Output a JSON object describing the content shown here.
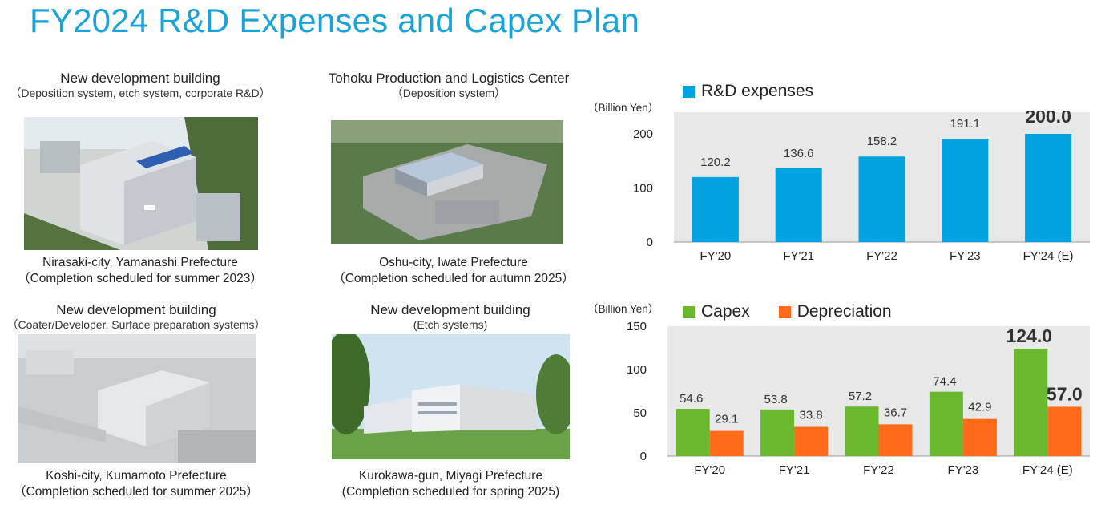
{
  "title": "FY2024 R&D Expenses and Capex Plan",
  "facilities": [
    {
      "heading": "New development building",
      "subheading": "（Deposition system, etch system, corporate R&D）",
      "location": "Nirasaki-city, Yamanashi Prefecture",
      "schedule": "（Completion scheduled for summer 2023）"
    },
    {
      "heading": "Tohoku Production and Logistics Center",
      "subheading": "（Deposition system）",
      "location": "Oshu-city, Iwate Prefecture",
      "schedule": "（Completion scheduled for autumn 2025）"
    },
    {
      "heading": "New development building",
      "subheading": "（Coater/Developer, Surface preparation systems）",
      "location": "Koshi-city, Kumamoto Prefecture",
      "schedule": "（Completion scheduled for summer 2025）"
    },
    {
      "heading": "New development building",
      "subheading": "(Etch systems)",
      "location": "Kurokawa-gun, Miyagi Prefecture",
      "schedule": "(Completion scheduled for spring 2025)"
    }
  ],
  "chart_data": [
    {
      "type": "bar",
      "unit_label": "（Billion Yen）",
      "categories": [
        "FY'20",
        "FY'21",
        "FY'22",
        "FY'23",
        "FY'24 (E)"
      ],
      "series": [
        {
          "name": "R&D expenses",
          "color": "#00a3e0",
          "values": [
            120.2,
            136.6,
            158.2,
            191.1,
            200.0
          ],
          "labels": [
            "120.2",
            "136.6",
            "158.2",
            "191.1",
            "200.0"
          ]
        }
      ],
      "ylim": [
        0,
        240
      ],
      "yticks": [
        "0",
        "100",
        "200"
      ],
      "ytick_values": [
        0,
        100,
        200
      ],
      "grid": false,
      "highlight_last": true,
      "legend_position": "top-left"
    },
    {
      "type": "bar",
      "unit_label": "（Billion Yen）",
      "categories": [
        "FY'20",
        "FY'21",
        "FY'22",
        "FY'23",
        "FY'24 (E)"
      ],
      "series": [
        {
          "name": "Capex",
          "color": "#6ab82e",
          "values": [
            54.6,
            53.8,
            57.2,
            74.4,
            124.0
          ],
          "labels": [
            "54.6",
            "53.8",
            "57.2",
            "74.4",
            "124.0"
          ]
        },
        {
          "name": "Depreciation",
          "color": "#ff6b1a",
          "values": [
            29.1,
            33.8,
            36.7,
            42.9,
            57.0
          ],
          "labels": [
            "29.1",
            "33.8",
            "36.7",
            "42.9",
            "57.0"
          ]
        }
      ],
      "ylim": [
        0,
        150
      ],
      "yticks": [
        "0",
        "50",
        "100",
        "150"
      ],
      "ytick_values": [
        0,
        50,
        100,
        150
      ],
      "grid": false,
      "highlight_last": true,
      "legend_position": "top-left"
    }
  ]
}
